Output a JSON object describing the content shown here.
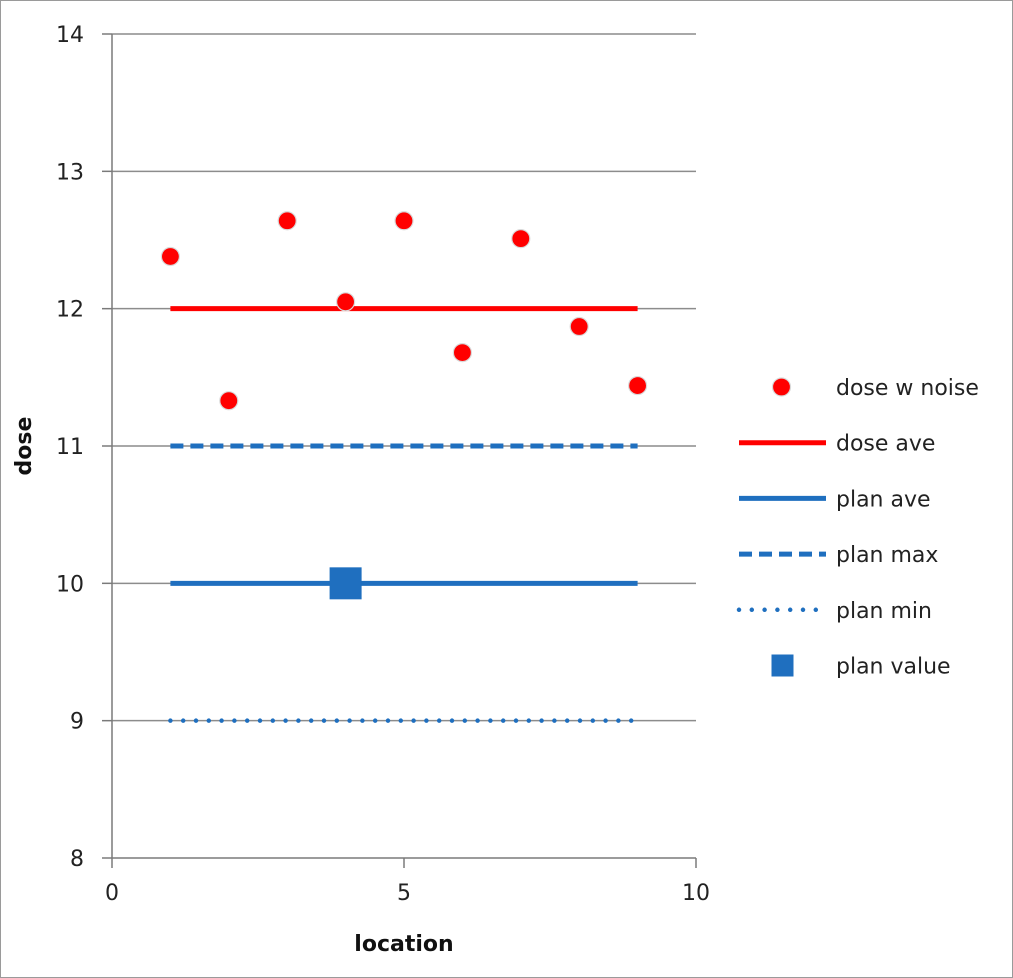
{
  "chart_data": {
    "type": "scatter",
    "title": "",
    "xlabel": "location",
    "ylabel": "dose",
    "xlim": [
      0,
      10
    ],
    "ylim": [
      8,
      14
    ],
    "xticks": [
      0,
      5,
      10
    ],
    "yticks": [
      8,
      9,
      10,
      11,
      12,
      13,
      14
    ],
    "grid": "horizontal",
    "legend_position": "right",
    "series": [
      {
        "name": "dose w noise",
        "kind": "markers",
        "marker": "circle",
        "color": "#ff0000",
        "x": [
          1,
          2,
          3,
          4,
          5,
          6,
          7,
          8,
          9
        ],
        "y": [
          12.38,
          11.33,
          12.64,
          12.05,
          12.64,
          11.68,
          12.51,
          11.87,
          11.44
        ]
      },
      {
        "name": "dose ave",
        "kind": "line",
        "style": "solid",
        "color": "#ff0000",
        "x": [
          1,
          9
        ],
        "y": [
          12,
          12
        ]
      },
      {
        "name": "plan ave",
        "kind": "line",
        "style": "solid",
        "color": "#1f6fbf",
        "x": [
          1,
          9
        ],
        "y": [
          10,
          10
        ]
      },
      {
        "name": "plan max",
        "kind": "line",
        "style": "dashed",
        "color": "#1f6fbf",
        "x": [
          1,
          9
        ],
        "y": [
          11,
          11
        ]
      },
      {
        "name": "plan min",
        "kind": "line",
        "style": "dotted",
        "color": "#1f6fbf",
        "x": [
          1,
          9
        ],
        "y": [
          9,
          9
        ]
      },
      {
        "name": "plan value",
        "kind": "markers",
        "marker": "square",
        "color": "#1f6fbf",
        "x": [
          4
        ],
        "y": [
          10
        ]
      }
    ]
  }
}
